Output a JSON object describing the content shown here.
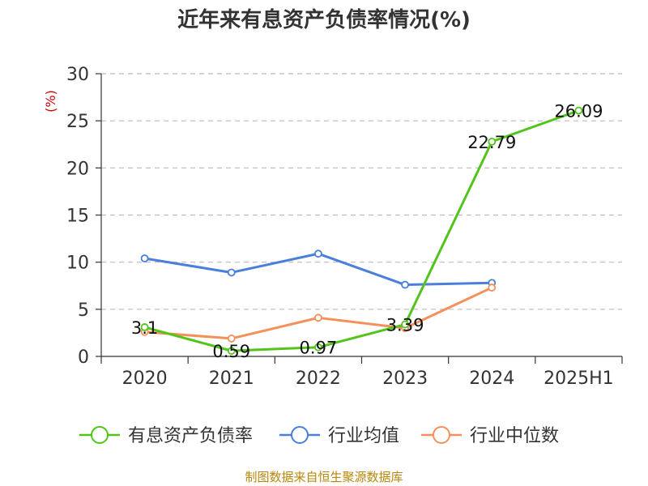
{
  "chart_data": {
    "type": "line",
    "title": "近年来有息资产负债率情况(%)",
    "ylabel": "(%)",
    "xlabel": "",
    "categories": [
      "2020",
      "2021",
      "2022",
      "2023",
      "2024",
      "2025H1"
    ],
    "ylim": [
      0,
      30
    ],
    "yticks": [
      0,
      5,
      10,
      15,
      20,
      25,
      30
    ],
    "grid": true,
    "legend_position": "bottom",
    "series": [
      {
        "name": "有息资产负债率",
        "color": "#52c41a",
        "values": [
          3.1,
          0.59,
          0.97,
          3.39,
          22.79,
          26.09
        ],
        "labels": [
          "3.1",
          "0.59",
          "0.97",
          "3.39",
          "22.79",
          "26.09"
        ]
      },
      {
        "name": "行业均值",
        "color": "#4a7fdc",
        "values": [
          10.4,
          8.9,
          10.9,
          7.6,
          7.8,
          null
        ]
      },
      {
        "name": "行业中位数",
        "color": "#f5905a",
        "values": [
          2.6,
          1.9,
          4.1,
          3.0,
          7.3,
          null
        ]
      }
    ]
  },
  "source": "制图数据来自恒生聚源数据库"
}
